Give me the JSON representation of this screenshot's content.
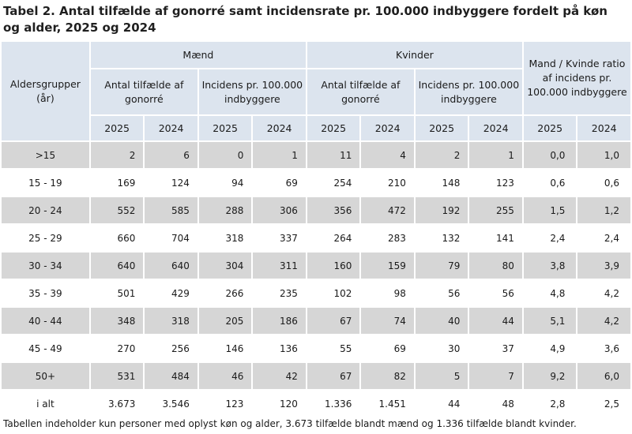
{
  "title": "Tabel 2. Antal tilfælde af gonorré samt incidensrate pr. 100.000 indbyggere fordelt på køn og alder, 2025 og 2024",
  "headers": {
    "age_group": "Aldersgrupper (år)",
    "men": "Mænd",
    "women": "Kvinder",
    "ratio": "Mand / Kvinde ratio af incidens pr. 100.000 indbyggere",
    "cases": "Antal tilfælde af gonorré",
    "incidence": "Incidens pr. 100.000 indbyggere",
    "y2025": "2025",
    "y2024": "2024"
  },
  "rows": [
    {
      "age": ">15",
      "vals": [
        "2",
        "6",
        "0",
        "1",
        "11",
        "4",
        "2",
        "1",
        "0,0",
        "1,0"
      ]
    },
    {
      "age": "15 - 19",
      "vals": [
        "169",
        "124",
        "94",
        "69",
        "254",
        "210",
        "148",
        "123",
        "0,6",
        "0,6"
      ]
    },
    {
      "age": "20 - 24",
      "vals": [
        "552",
        "585",
        "288",
        "306",
        "356",
        "472",
        "192",
        "255",
        "1,5",
        "1,2"
      ]
    },
    {
      "age": "25 - 29",
      "vals": [
        "660",
        "704",
        "318",
        "337",
        "264",
        "283",
        "132",
        "141",
        "2,4",
        "2,4"
      ]
    },
    {
      "age": "30 - 34",
      "vals": [
        "640",
        "640",
        "304",
        "311",
        "160",
        "159",
        "79",
        "80",
        "3,8",
        "3,9"
      ]
    },
    {
      "age": "35 - 39",
      "vals": [
        "501",
        "429",
        "266",
        "235",
        "102",
        "98",
        "56",
        "56",
        "4,8",
        "4,2"
      ]
    },
    {
      "age": "40 - 44",
      "vals": [
        "348",
        "318",
        "205",
        "186",
        "67",
        "74",
        "40",
        "44",
        "5,1",
        "4,2"
      ]
    },
    {
      "age": "45 - 49",
      "vals": [
        "270",
        "256",
        "146",
        "136",
        "55",
        "69",
        "30",
        "37",
        "4,9",
        "3,6"
      ]
    },
    {
      "age": "50+",
      "vals": [
        "531",
        "484",
        "46",
        "42",
        "67",
        "82",
        "5",
        "7",
        "9,2",
        "6,0"
      ]
    },
    {
      "age": "i alt",
      "vals": [
        "3.673",
        "3.546",
        "123",
        "120",
        "1.336",
        "1.451",
        "44",
        "48",
        "2,8",
        "2,5"
      ]
    }
  ],
  "footnote": "Tabellen indeholder kun personer med oplyst køn og alder, 3.673 tilfælde blandt mænd og 1.336 tilfælde blandt kvinder."
}
